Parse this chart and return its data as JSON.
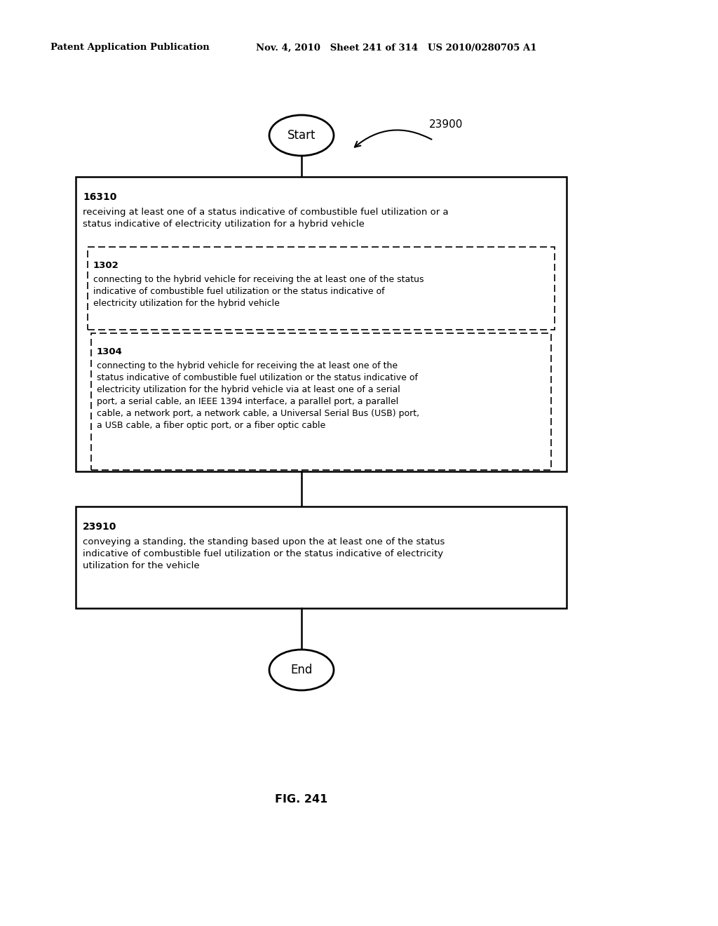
{
  "header_left": "Patent Application Publication",
  "header_mid": "Nov. 4, 2010   Sheet 241 of 314   US 2010/0280705 A1",
  "fig_label": "FIG. 241",
  "diagram_label": "23900",
  "start_label": "Start",
  "end_label": "End",
  "box1_id": "16310",
  "box1_text": "receiving at least one of a status indicative of combustible fuel utilization or a\nstatus indicative of electricity utilization for a hybrid vehicle",
  "box2_id": "1302",
  "box2_text": "connecting to the hybrid vehicle for receiving the at least one of the status\nindicative of combustible fuel utilization or the status indicative of\nelectricity utilization for the hybrid vehicle",
  "box3_id": "1304",
  "box3_text": "connecting to the hybrid vehicle for receiving the at least one of the\nstatus indicative of combustible fuel utilization or the status indicative of\nelectricity utilization for the hybrid vehicle via at least one of a serial\nport, a serial cable, an IEEE 1394 interface, a parallel port, a parallel\ncable, a network port, a network cable, a Universal Serial Bus (USB) port,\na USB cable, a fiber optic port, or a fiber optic cable",
  "box4_id": "23910",
  "box4_text": "conveying a standing, the standing based upon the at least one of the status\nindicative of combustible fuel utilization or the status indicative of electricity\nutilization for the vehicle",
  "bg_color": "#ffffff",
  "text_color": "#000000"
}
